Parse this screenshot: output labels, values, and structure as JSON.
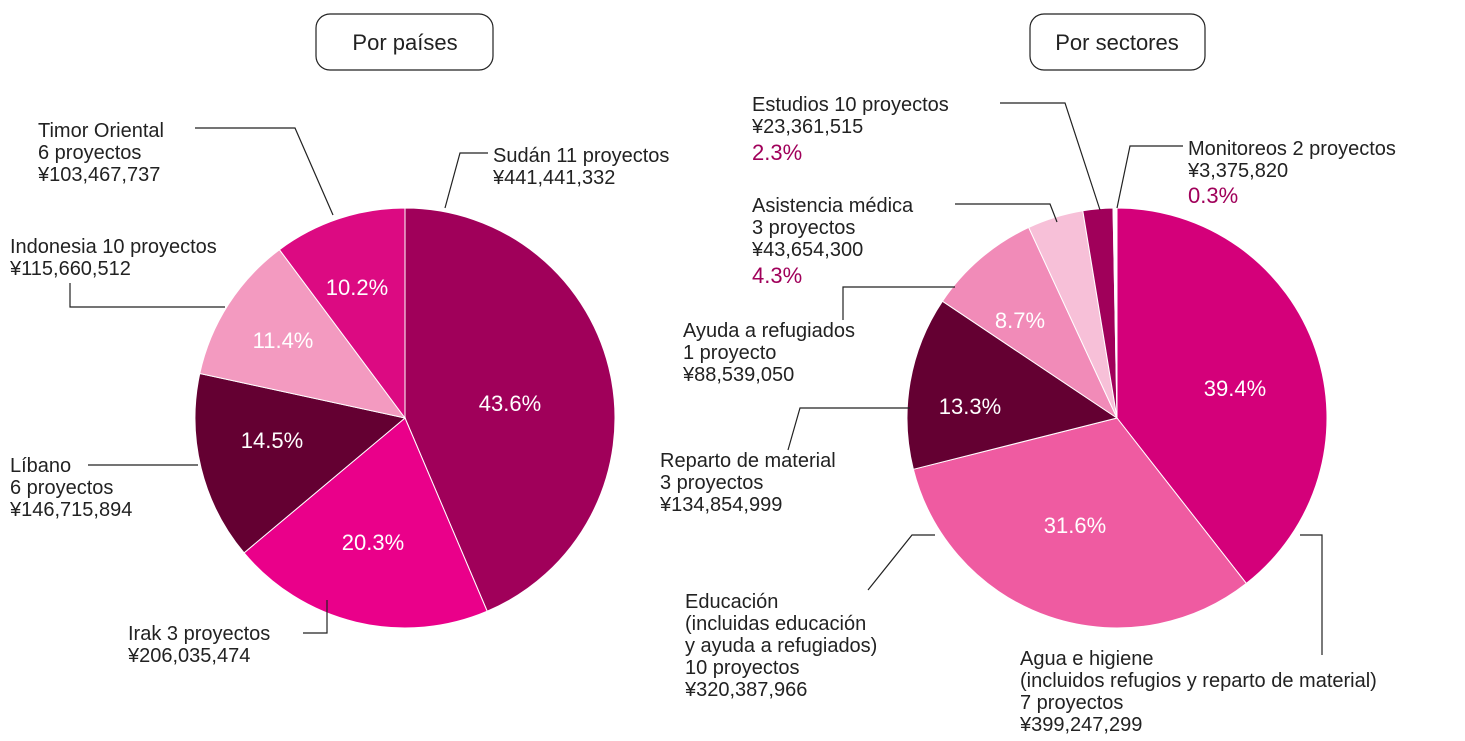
{
  "chart_data": [
    {
      "type": "pie",
      "title": "Por países",
      "categories": [
        "Sudán 11 proyectos",
        "Irak 3 proyectos",
        "Líbano\n6 proyectos",
        "Indonesia 10 proyectos",
        "Timor Oriental\n6 proyectos"
      ],
      "amounts": [
        "¥441,441,332",
        "¥206,035,474",
        "¥146,715,894",
        "¥115,660,512",
        "¥103,467,737"
      ],
      "values": [
        43.6,
        20.3,
        14.5,
        11.4,
        10.2
      ],
      "value_labels": [
        "43.6%",
        "20.3%",
        "14.5%",
        "11.4%",
        "10.2%"
      ],
      "colors": [
        "#a0005a",
        "#ea008a",
        "#640032",
        "#f39ac0",
        "#dc0a82"
      ]
    },
    {
      "type": "pie",
      "title": "Por sectores",
      "categories": [
        "Agua e higiene\n(incluidos refugios y reparto de material)\n7 proyectos",
        "Educación\n(incluidas educación\ny ayuda a refugiados)\n10 proyectos",
        "Reparto de material\n3 proyectos",
        "Ayuda a refugiados\n1 proyecto",
        "Asistencia médica\n3 proyectos",
        "Estudios  10 proyectos",
        "Monitoreos 2 proyectos"
      ],
      "amounts": [
        "¥399,247,299",
        "¥320,387,966",
        "¥134,854,999",
        "¥88,539,050",
        "¥43,654,300",
        "¥23,361,515",
        "¥3,375,820"
      ],
      "values": [
        39.4,
        31.6,
        13.3,
        8.7,
        4.3,
        2.3,
        0.3
      ],
      "value_labels": [
        "39.4%",
        "31.6%",
        "13.3%",
        "8.7%",
        "4.3%",
        "2.3%",
        "0.3%"
      ],
      "colors": [
        "#d4007a",
        "#ef5ba1",
        "#640032",
        "#f18bb8",
        "#f7c0d8",
        "#a0005a",
        "#ffffff"
      ]
    }
  ]
}
